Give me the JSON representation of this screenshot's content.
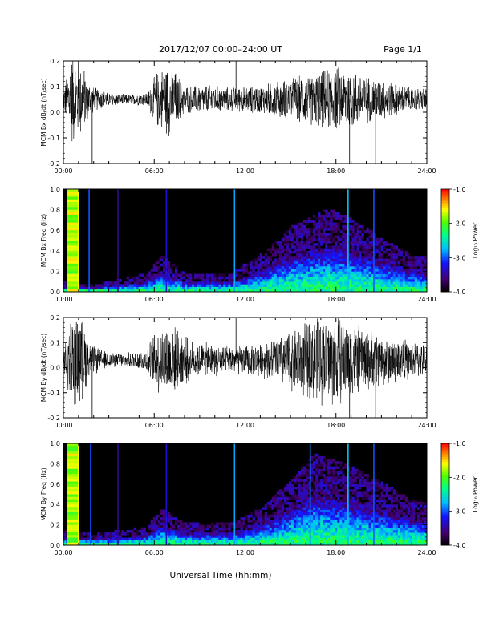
{
  "header": {
    "title": "2017/12/07  00:00–24:00 UT",
    "page": "Page 1/1"
  },
  "footer": {
    "xlabel": "Universal Time (hh:mm)"
  },
  "colorbar": {
    "label": "Log₁₀ Power",
    "ticks": [
      "-1.0",
      "-2.0",
      "-3.0",
      "-4.0"
    ],
    "range": [
      -4.0,
      -1.0
    ]
  },
  "chart_data": [
    {
      "type": "line",
      "ylabel": "MCM Bx dB/dt (nT/sec)",
      "ylim": [
        -0.2,
        0.2
      ],
      "yticks": [
        "0.2",
        "0.1",
        "0.0",
        "-0.1",
        "-0.2"
      ],
      "xlim_hours": [
        0,
        24
      ],
      "xticks": [
        "00:00",
        "06:00",
        "12:00",
        "18:00",
        "24:00"
      ],
      "baseline": 0.05,
      "spikes": [
        {
          "t": 1.9,
          "dir": -1
        },
        {
          "t": 11.4,
          "dir": 1
        },
        {
          "t": 18.9,
          "dir": -1
        },
        {
          "t": 20.6,
          "dir": -1
        }
      ],
      "amplitude_profile": [
        {
          "t": 0.0,
          "a": 0.04
        },
        {
          "t": 0.5,
          "a": 0.2
        },
        {
          "t": 1.2,
          "a": 0.16
        },
        {
          "t": 1.8,
          "a": 0.06
        },
        {
          "t": 3.0,
          "a": 0.03
        },
        {
          "t": 4.2,
          "a": 0.02
        },
        {
          "t": 5.5,
          "a": 0.03
        },
        {
          "t": 6.2,
          "a": 0.12
        },
        {
          "t": 7.0,
          "a": 0.16
        },
        {
          "t": 8.0,
          "a": 0.06
        },
        {
          "t": 9.5,
          "a": 0.06
        },
        {
          "t": 11.0,
          "a": 0.05
        },
        {
          "t": 13.0,
          "a": 0.06
        },
        {
          "t": 15.0,
          "a": 0.09
        },
        {
          "t": 17.0,
          "a": 0.12
        },
        {
          "t": 18.0,
          "a": 0.14
        },
        {
          "t": 19.0,
          "a": 0.13
        },
        {
          "t": 20.0,
          "a": 0.1
        },
        {
          "t": 21.5,
          "a": 0.08
        },
        {
          "t": 23.0,
          "a": 0.05
        },
        {
          "t": 24.0,
          "a": 0.05
        }
      ]
    },
    {
      "type": "heatmap",
      "ylabel": "MCM Bx Freq (Hz)",
      "ylim": [
        0,
        1.0
      ],
      "yticks": [
        "1.0",
        "0.8",
        "0.6",
        "0.4",
        "0.2",
        "0.0"
      ],
      "xlim_hours": [
        0,
        24
      ],
      "xticks": [
        "00:00",
        "06:00",
        "12:00",
        "18:00",
        "24:00"
      ],
      "background_power": -4.0,
      "hot_band": {
        "from": 0.25,
        "to": 1.0,
        "power": -1.8
      },
      "vertical_lines": [
        {
          "t": 1.0,
          "power": -1.6
        },
        {
          "t": 1.7,
          "power": -3.0
        },
        {
          "t": 3.6,
          "power": -3.5
        },
        {
          "t": 6.8,
          "power": -3.3
        },
        {
          "t": 11.3,
          "power": -2.8
        },
        {
          "t": 18.8,
          "power": -2.7
        },
        {
          "t": 20.5,
          "power": -3.0
        }
      ],
      "activity_envelope": [
        {
          "t": 0.0,
          "f": 0.05
        },
        {
          "t": 2.0,
          "f": 0.04
        },
        {
          "t": 5.5,
          "f": 0.1
        },
        {
          "t": 6.5,
          "f": 0.2
        },
        {
          "t": 8.0,
          "f": 0.1
        },
        {
          "t": 11.0,
          "f": 0.1
        },
        {
          "t": 13.0,
          "f": 0.2
        },
        {
          "t": 15.0,
          "f": 0.35
        },
        {
          "t": 17.5,
          "f": 0.45
        },
        {
          "t": 19.0,
          "f": 0.4
        },
        {
          "t": 21.0,
          "f": 0.3
        },
        {
          "t": 23.0,
          "f": 0.2
        },
        {
          "t": 24.0,
          "f": 0.2
        }
      ]
    },
    {
      "type": "line",
      "ylabel": "MCM By dB/dt (nT/sec)",
      "ylim": [
        -0.2,
        0.2
      ],
      "yticks": [
        "0.2",
        "0.1",
        "0.0",
        "-0.1",
        "-0.2"
      ],
      "xlim_hours": [
        0,
        24
      ],
      "xticks": [
        "00:00",
        "06:00",
        "12:00",
        "18:00",
        "24:00"
      ],
      "baseline": 0.03,
      "spikes": [
        {
          "t": 1.9,
          "dir": -1
        },
        {
          "t": 11.4,
          "dir": 1
        },
        {
          "t": 18.9,
          "dir": -1
        },
        {
          "t": 20.6,
          "dir": -1
        }
      ],
      "amplitude_profile": [
        {
          "t": 0.0,
          "a": 0.05
        },
        {
          "t": 0.5,
          "a": 0.2
        },
        {
          "t": 1.2,
          "a": 0.18
        },
        {
          "t": 1.8,
          "a": 0.07
        },
        {
          "t": 3.0,
          "a": 0.03
        },
        {
          "t": 4.2,
          "a": 0.03
        },
        {
          "t": 5.5,
          "a": 0.05
        },
        {
          "t": 6.2,
          "a": 0.14
        },
        {
          "t": 7.0,
          "a": 0.16
        },
        {
          "t": 8.5,
          "a": 0.08
        },
        {
          "t": 10.0,
          "a": 0.07
        },
        {
          "t": 11.0,
          "a": 0.06
        },
        {
          "t": 13.0,
          "a": 0.07
        },
        {
          "t": 15.0,
          "a": 0.13
        },
        {
          "t": 16.5,
          "a": 0.18
        },
        {
          "t": 18.0,
          "a": 0.2
        },
        {
          "t": 19.0,
          "a": 0.16
        },
        {
          "t": 20.5,
          "a": 0.12
        },
        {
          "t": 22.0,
          "a": 0.1
        },
        {
          "t": 23.0,
          "a": 0.08
        },
        {
          "t": 24.0,
          "a": 0.07
        }
      ]
    },
    {
      "type": "heatmap",
      "ylabel": "MCM By Freq (Hz)",
      "ylim": [
        0,
        1.0
      ],
      "yticks": [
        "1.0",
        "0.8",
        "0.6",
        "0.4",
        "0.2",
        "0.0"
      ],
      "xlim_hours": [
        0,
        24
      ],
      "xticks": [
        "00:00",
        "06:00",
        "12:00",
        "18:00",
        "24:00"
      ],
      "background_power": -4.0,
      "hot_band": {
        "from": 0.25,
        "to": 1.0,
        "power": -1.8
      },
      "vertical_lines": [
        {
          "t": 1.0,
          "power": -1.6
        },
        {
          "t": 1.8,
          "power": -3.0
        },
        {
          "t": 3.6,
          "power": -3.5
        },
        {
          "t": 6.8,
          "power": -3.3
        },
        {
          "t": 11.3,
          "power": -2.8
        },
        {
          "t": 16.3,
          "power": -2.9
        },
        {
          "t": 18.8,
          "power": -2.7
        },
        {
          "t": 20.5,
          "power": -3.0
        }
      ],
      "activity_envelope": [
        {
          "t": 0.0,
          "f": 0.08
        },
        {
          "t": 2.0,
          "f": 0.06
        },
        {
          "t": 5.5,
          "f": 0.1
        },
        {
          "t": 6.5,
          "f": 0.2
        },
        {
          "t": 8.0,
          "f": 0.12
        },
        {
          "t": 11.0,
          "f": 0.12
        },
        {
          "t": 13.0,
          "f": 0.2
        },
        {
          "t": 15.0,
          "f": 0.35
        },
        {
          "t": 16.5,
          "f": 0.5
        },
        {
          "t": 18.5,
          "f": 0.45
        },
        {
          "t": 21.0,
          "f": 0.35
        },
        {
          "t": 23.0,
          "f": 0.25
        },
        {
          "t": 24.0,
          "f": 0.25
        }
      ]
    }
  ]
}
